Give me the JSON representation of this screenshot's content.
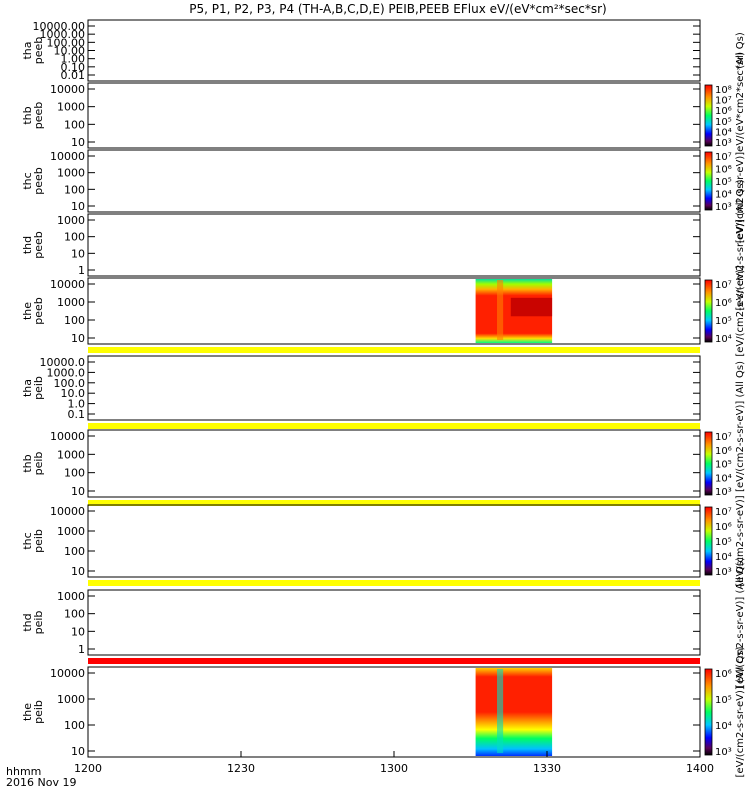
{
  "chart_data": {
    "type": "heatmap",
    "title": "P5, P1, P2, P3, P4 (TH-A,B,C,D,E) PEIB,PEEB EFlux eV/(eV*cm²*sec*sr)",
    "x_ticks": [
      "1200",
      "1230",
      "1300",
      "1330",
      "1400"
    ],
    "x_range": [
      1200,
      1400
    ],
    "x_units_label": "hhmm",
    "date_label": "2016 Nov 19",
    "data_window_hhmm": [
      1316,
      1331
    ],
    "panels": [
      {
        "label": "tha peeb",
        "y_ticks": [
          "10000.00",
          "1000.00",
          "100.00",
          "10.00",
          "1.00",
          "0.10",
          "0.01"
        ],
        "colorbar": false,
        "data_window": false,
        "color_stripe": null
      },
      {
        "label": "thb peeb",
        "y_ticks": [
          "10000",
          "1000",
          "100",
          "10"
        ],
        "colorbar": true,
        "colorbar_ticks": [
          "10⁸",
          "10⁷",
          "10⁶",
          "10⁵",
          "10⁴",
          "10³"
        ],
        "data_window": false,
        "color_stripe": null
      },
      {
        "label": "thc peeb",
        "y_ticks": [
          "10000",
          "1000",
          "100",
          "10"
        ],
        "colorbar": true,
        "colorbar_ticks": [
          "10⁷",
          "10⁶",
          "10⁵",
          "10⁴",
          "10³"
        ],
        "data_window": false,
        "color_stripe": null
      },
      {
        "label": "thd peeb",
        "y_ticks": [
          "1000",
          "100",
          "10",
          "1"
        ],
        "colorbar": false,
        "data_window": false,
        "color_stripe": null
      },
      {
        "label": "the peeb",
        "y_ticks": [
          "10000",
          "1000",
          "100",
          "10"
        ],
        "colorbar": true,
        "colorbar_ticks": [
          "10⁷",
          "10⁶",
          "10⁵",
          "10⁴"
        ],
        "data_window": true,
        "color_stripe": "#ffff00"
      },
      {
        "label": "tha peib",
        "y_ticks": [
          "10000.0",
          "1000.0",
          "100.0",
          "10.0",
          "1.0",
          "0.1"
        ],
        "colorbar": false,
        "data_window": false,
        "color_stripe": "#ffff00"
      },
      {
        "label": "thb peib",
        "y_ticks": [
          "10000",
          "1000",
          "100",
          "10"
        ],
        "colorbar": true,
        "colorbar_ticks": [
          "10⁷",
          "10⁶",
          "10⁵",
          "10⁴",
          "10³"
        ],
        "data_window": false,
        "color_stripe": "#ffff00"
      },
      {
        "label": "thc peib",
        "y_ticks": [
          "10000",
          "1000",
          "100",
          "10"
        ],
        "colorbar": true,
        "colorbar_ticks": [
          "10⁷",
          "10⁶",
          "10⁵",
          "10⁴",
          "10³"
        ],
        "data_window": false,
        "color_stripe": "#ffff00"
      },
      {
        "label": "thd peib",
        "y_ticks": [
          "1000",
          "100",
          "10",
          "1"
        ],
        "colorbar": false,
        "data_window": false,
        "color_stripe": "#ff0000"
      },
      {
        "label": "the peib",
        "y_ticks": [
          "10000",
          "1000",
          "100",
          "10"
        ],
        "colorbar": true,
        "colorbar_ticks": [
          "10⁶",
          "10⁵",
          "10⁴",
          "10³"
        ],
        "data_window": true,
        "color_stripe": null
      }
    ],
    "right_side_labels": [
      {
        "text": "(All Qs)",
        "span_panels": [
          0
        ]
      },
      {
        "text": "[eV/(cm2-s-sr-eV)]eV/(eV*cm2*sec*sr)",
        "span_panels": [
          1,
          2
        ]
      },
      {
        "text": "[eV/(cm2-s-sr-eV)] (All Qs)",
        "span_panels": [
          3
        ]
      },
      {
        "text": "[eV/(cm2-s-sr-eV)]",
        "span_panels": [
          4
        ]
      },
      {
        "text": "[eV/(cm2-s-sr-eV)] (All Qs)",
        "span_panels": [
          5,
          6
        ]
      },
      {
        "text": "[eV/(cm2-s-sr-eV)]",
        "span_panels": [
          7
        ]
      },
      {
        "text": "[eV/(cm2-s-sr-eV)] (All Qs)",
        "span_panels": [
          8
        ]
      },
      {
        "text": "[eV/(cm2-s-sr-eV)] (All Qs)",
        "span_panels": [
          9
        ]
      }
    ]
  }
}
